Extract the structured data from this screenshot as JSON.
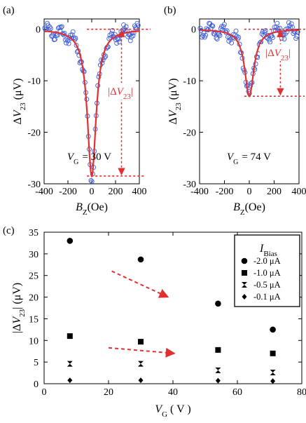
{
  "panels": {
    "a": {
      "label": "(a)",
      "anno_symbol": "V",
      "anno_sub": "G",
      "anno_value": "= 30 V",
      "delta_label": "|ΔV23|"
    },
    "b": {
      "label": "(b)",
      "anno_symbol": "V",
      "anno_sub": "G",
      "anno_value": "= 74 V",
      "delta_label": "|ΔV23|"
    },
    "c": {
      "label": "(c)"
    }
  },
  "chart_data": [
    {
      "panel": "a",
      "type": "scatter",
      "xlabel": "BZ(Oe)",
      "ylabel": "ΔV23 (μV)",
      "xlim": [
        -400,
        400
      ],
      "ylim": [
        -30,
        2
      ],
      "xticks": [
        -400,
        -200,
        0,
        200,
        400
      ],
      "yticks": [
        0,
        -10,
        -20,
        -30
      ],
      "annotation": "VG = 30 V",
      "series": [
        {
          "kind": "data",
          "marker": "open-circle",
          "color": "#3b5bdb"
        },
        {
          "kind": "fit",
          "color": "#e03131",
          "min": -28.5,
          "center": 0,
          "half_width": 45
        }
      ],
      "delta_V23": 28.5
    },
    {
      "panel": "b",
      "type": "scatter",
      "xlabel": "BZ(Oe)",
      "ylabel": "ΔV23 (μV)",
      "xlim": [
        -400,
        400
      ],
      "ylim": [
        -30,
        2
      ],
      "xticks": [
        -400,
        -200,
        0,
        200,
        400
      ],
      "yticks": [
        0,
        -10,
        -20,
        -30
      ],
      "annotation": "VG = 74 V",
      "series": [
        {
          "kind": "data",
          "marker": "open-circle",
          "color": "#3b5bdb"
        },
        {
          "kind": "fit",
          "color": "#e03131",
          "min": -13,
          "center": 0,
          "half_width": 45
        }
      ],
      "delta_V23": 13
    },
    {
      "panel": "c",
      "type": "scatter",
      "xlabel": "VG ( V )",
      "ylabel": "|ΔV23| (μV)",
      "xlim": [
        0,
        80
      ],
      "ylim": [
        0,
        35
      ],
      "xticks": [
        0,
        20,
        40,
        60,
        80
      ],
      "yticks": [
        0,
        5,
        10,
        15,
        20,
        25,
        30,
        35
      ],
      "legend_title": "IBias",
      "legend_position": "top-right",
      "series": [
        {
          "name": "-2.0 μA",
          "marker": "circle",
          "x": [
            8,
            30,
            54,
            71
          ],
          "y": [
            33,
            28.7,
            18.5,
            12.5
          ]
        },
        {
          "name": "-1.0 μA",
          "marker": "square",
          "x": [
            8,
            30,
            54,
            71
          ],
          "y": [
            11,
            9.7,
            7.8,
            7
          ]
        },
        {
          "name": "-0.5 μA",
          "marker": "hourglass",
          "x": [
            8,
            30,
            54,
            71
          ],
          "y": [
            4.6,
            4.6,
            3.1,
            2.6
          ]
        },
        {
          "name": "-0.1 μA",
          "marker": "diamond",
          "x": [
            8,
            30,
            54,
            71
          ],
          "y": [
            0.8,
            0.8,
            0.7,
            0.6
          ]
        }
      ],
      "arrow_color": "#e03131"
    }
  ]
}
